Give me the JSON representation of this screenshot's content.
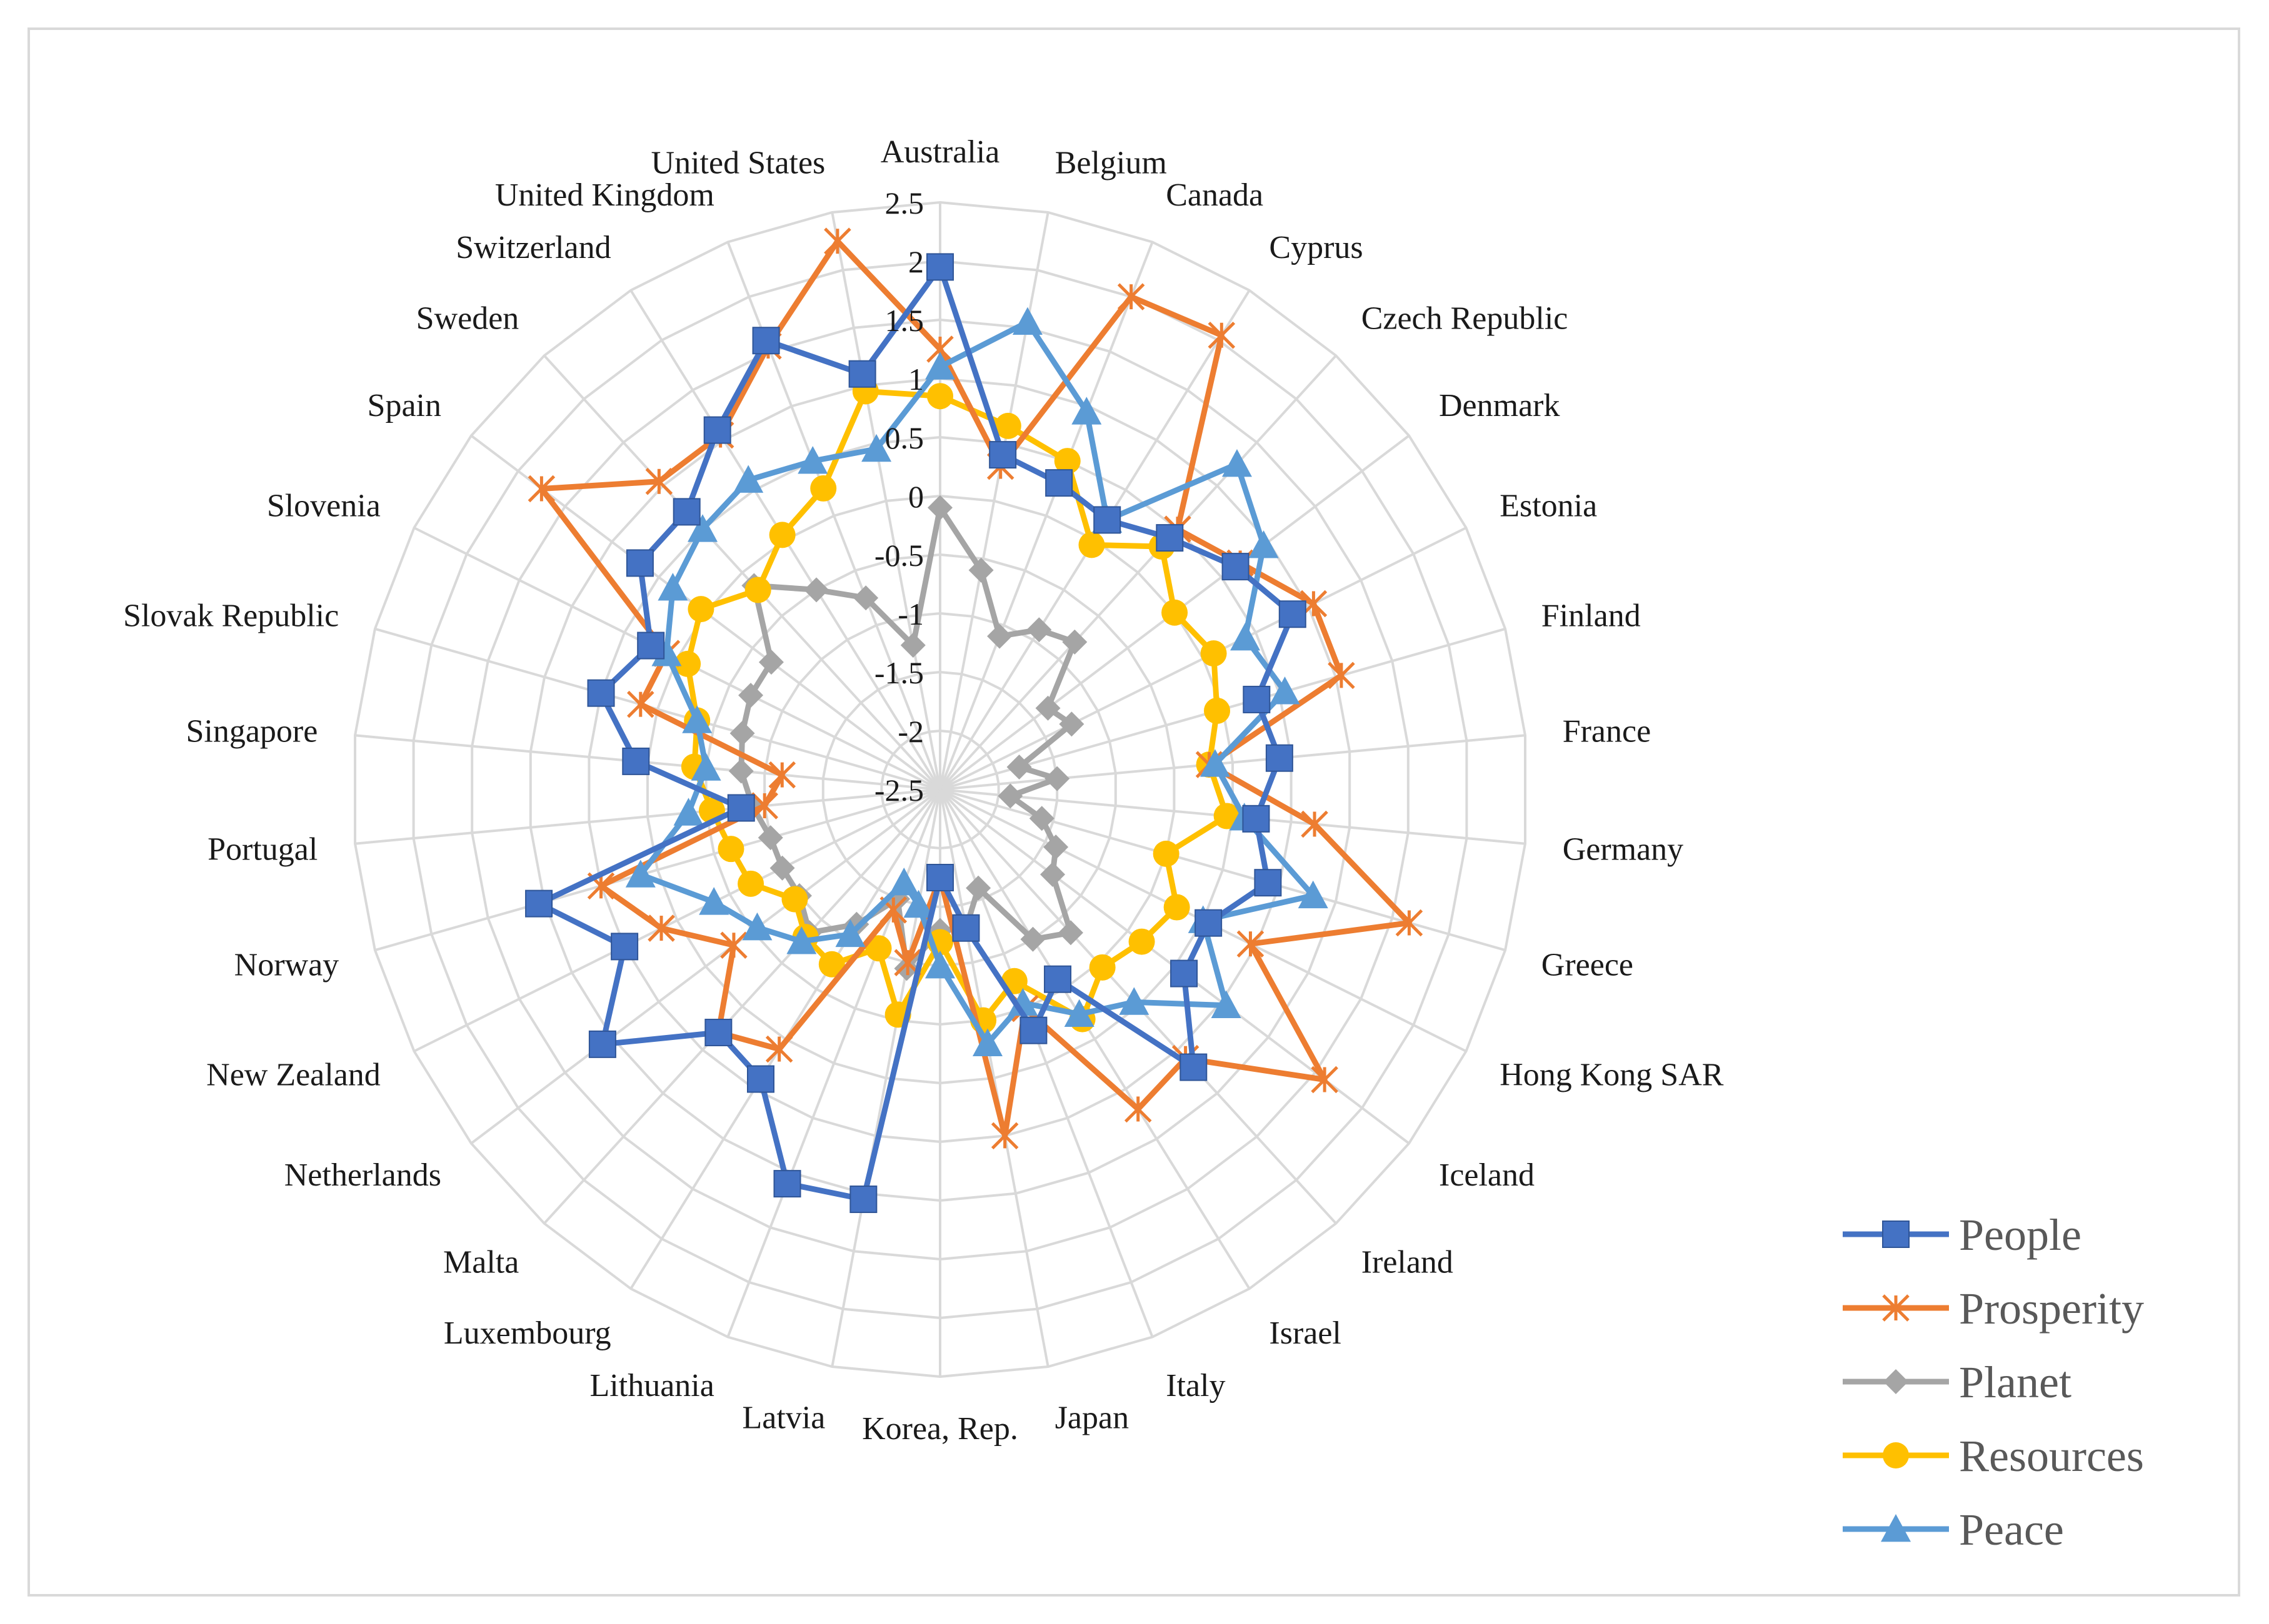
{
  "chart_data": {
    "type": "radar",
    "title": "",
    "categories": [
      "Australia",
      "Belgium",
      "Canada",
      "Cyprus",
      "Czech Republic",
      "Denmark",
      "Estonia",
      "Finland",
      "France",
      "Germany",
      "Greece",
      "Hong Kong SAR",
      "Iceland",
      "Ireland",
      "Israel",
      "Italy",
      "Japan",
      "Korea, Rep.",
      "Latvia",
      "Lithuania",
      "Luxembourg",
      "Malta",
      "Netherlands",
      "New Zealand",
      "Norway",
      "Portugal",
      "Singapore",
      "Slovak Republic",
      "Slovenia",
      "Spain",
      "Sweden",
      "Switzerland",
      "United Kingdom",
      "United States"
    ],
    "axis": {
      "range": [
        -2.5,
        2.5
      ],
      "ticks": [
        -2.5,
        -2,
        -1.5,
        -1,
        -0.5,
        0,
        0.5,
        1,
        1.5,
        2,
        2.5
      ],
      "tick_labels": [
        "-2.5",
        "-2",
        "-1.5",
        "-1",
        "-0.5",
        "0",
        "0.5",
        "1",
        "1.5",
        "2",
        "2.5"
      ]
    },
    "grid": true,
    "legend_position": "bottom-right",
    "series": [
      {
        "name": "People",
        "color": "#4472c4",
        "marker": "square",
        "values": [
          1.95,
          0.4,
          0.3,
          0.2,
          0.4,
          0.65,
          0.85,
          0.3,
          0.4,
          0.2,
          0.4,
          0.05,
          0.1,
          0.7,
          -0.6,
          -0.3,
          -1.3,
          -1.75,
          1.05,
          1.1,
          0.4,
          0.3,
          1.1,
          0.5,
          1.05,
          -0.8,
          0.1,
          0.5,
          0.25,
          0.7,
          0.7,
          1.1,
          1.6,
          1.1
        ]
      },
      {
        "name": "Prosperity",
        "color": "#ed7d31",
        "marker": "x",
        "values": [
          1.25,
          0.3,
          2.0,
          2.05,
          0.5,
          0.7,
          1.05,
          1.05,
          -0.2,
          0.7,
          1.65,
          0.45,
          1.6,
          0.6,
          0.7,
          -0.5,
          0.5,
          -1.75,
          -1.0,
          -1.4,
          0.1,
          0.3,
          -0.3,
          0.15,
          0.5,
          -1.0,
          -1.15,
          0.15,
          0.1,
          1.75,
          1.05,
          1.05,
          1.55,
          2.25
        ]
      },
      {
        "name": "Planet",
        "color": "#a5a5a5",
        "marker": "diamond",
        "values": [
          -0.1,
          -0.6,
          -1.1,
          -0.9,
          -0.8,
          -1.35,
          -1.25,
          -1.8,
          -1.5,
          -1.9,
          -1.6,
          -1.4,
          -1.3,
          -0.85,
          -1.0,
          -1.6,
          -1.3,
          -1.3,
          -0.95,
          -1.5,
          -1.15,
          -0.85,
          -1.0,
          -1.0,
          -1.0,
          -0.9,
          -0.8,
          -0.75,
          -0.7,
          -0.7,
          -0.15,
          -0.5,
          -0.75,
          -1.25
        ]
      },
      {
        "name": "Resources",
        "color": "#ffc000",
        "marker": "circle",
        "values": [
          0.85,
          0.65,
          0.5,
          -0.05,
          0.3,
          0.0,
          0.1,
          -0.05,
          -0.2,
          -0.05,
          -0.5,
          -0.25,
          -0.35,
          -0.45,
          -0.2,
          -0.75,
          -0.5,
          -1.2,
          -0.55,
          -1.05,
          -0.75,
          -0.8,
          -0.95,
          -0.7,
          -0.65,
          -0.55,
          -0.4,
          -0.35,
          -0.1,
          0.05,
          -0.2,
          0.05,
          0.25,
          0.95
        ]
      },
      {
        "name": "Peace",
        "color": "#5b9bd5",
        "marker": "triangle",
        "values": [
          1.1,
          1.55,
          0.95,
          0.2,
          1.25,
          0.95,
          0.4,
          0.55,
          -0.15,
          0.1,
          0.8,
          0.0,
          0.55,
          -0.05,
          -0.25,
          -0.55,
          -0.3,
          -1.0,
          -1.5,
          -1.65,
          -1.05,
          -0.75,
          -0.55,
          -0.35,
          0.15,
          -0.35,
          -0.5,
          -0.35,
          0.1,
          0.35,
          0.5,
          0.6,
          0.5,
          0.45
        ]
      }
    ]
  }
}
